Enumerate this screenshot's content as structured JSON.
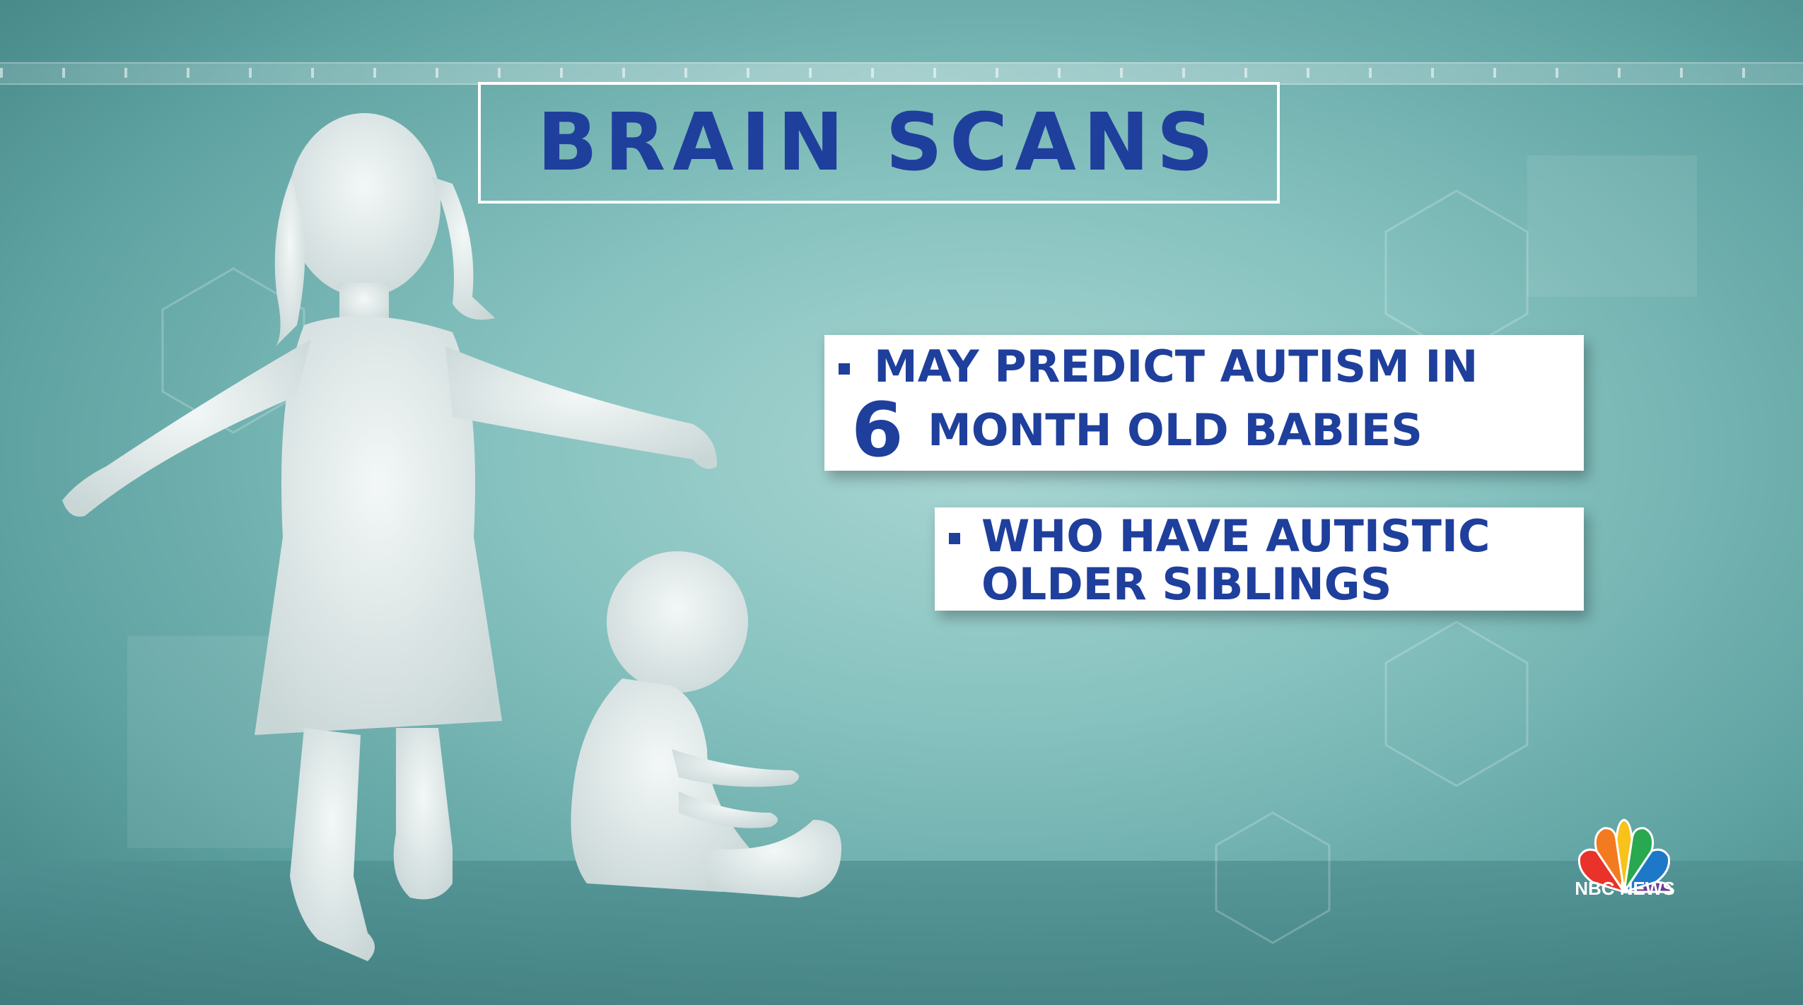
{
  "title": "BRAIN SCANS",
  "card_1": {
    "line_1": "MAY PREDICT AUTISM IN",
    "big_number": "6",
    "line_2": "MONTH OLD BABIES"
  },
  "card_2": {
    "line_1": "WHO HAVE AUTISTIC",
    "line_2": "OLDER SIBLINGS"
  },
  "logo": {
    "icon": "peacock-icon",
    "text": "NBC NEWS"
  },
  "colors": {
    "headline_blue": "#1f3f9c",
    "background_teal": "#86c2bf",
    "card_white": "#ffffff"
  }
}
